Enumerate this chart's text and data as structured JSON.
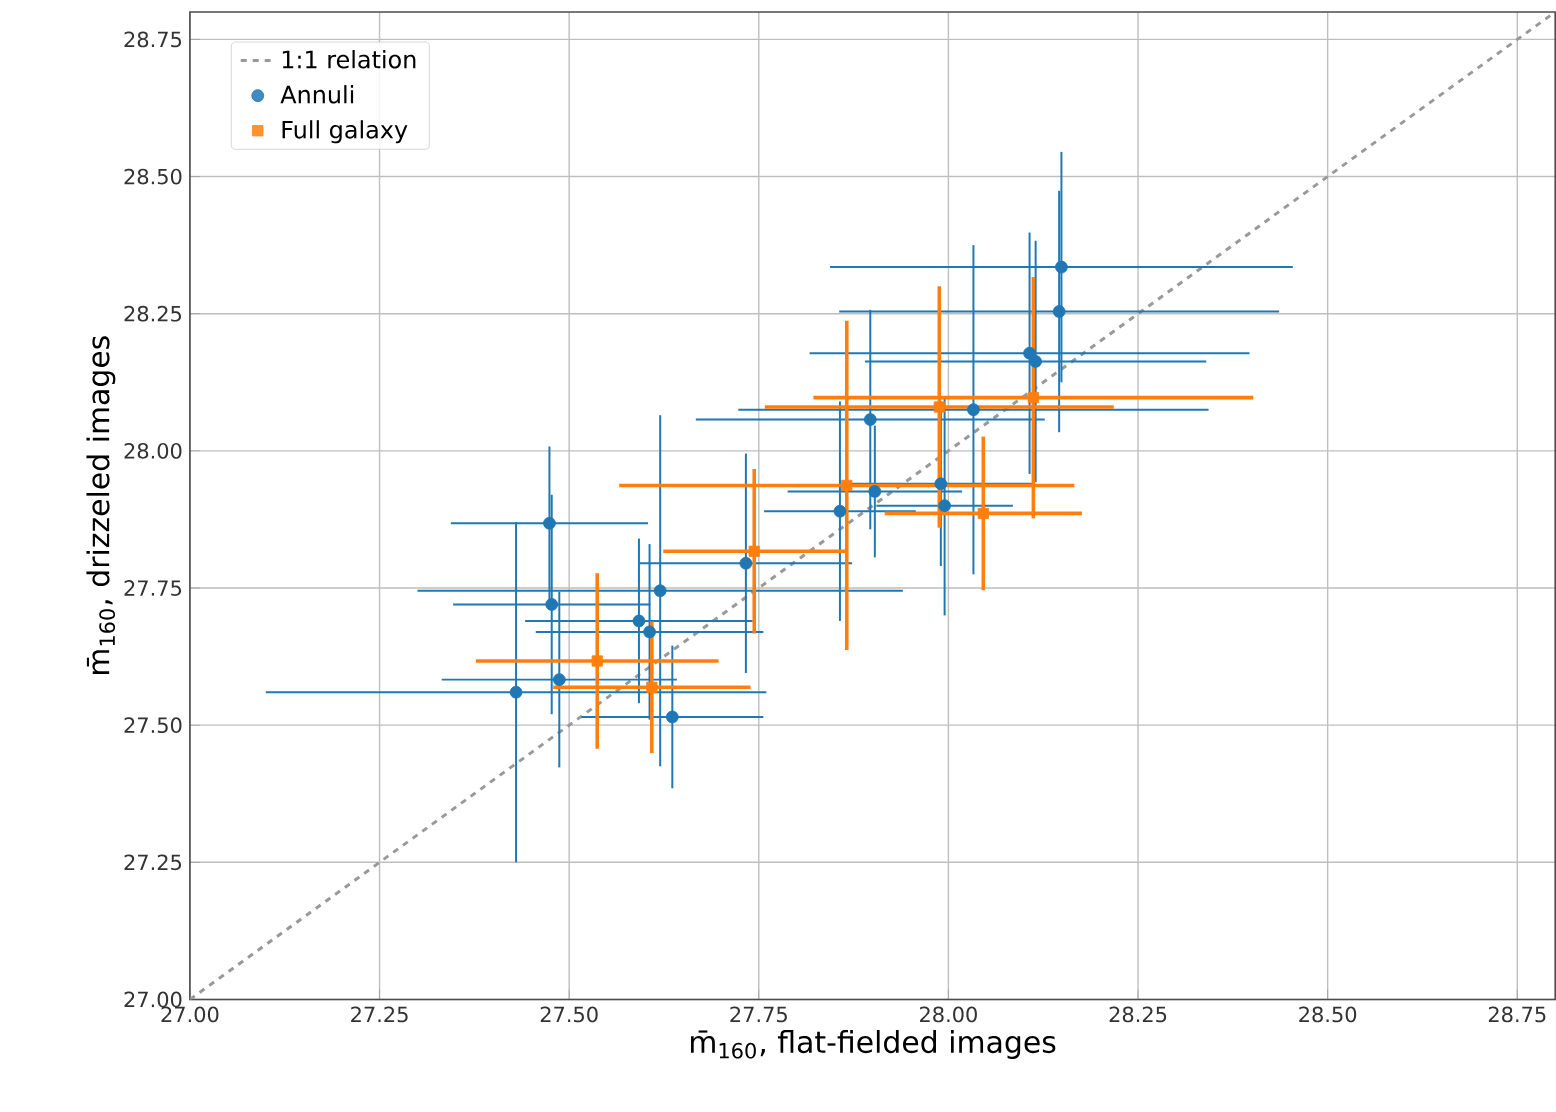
{
  "chart_data": {
    "type": "scatter",
    "xlabel": "m̄$_{160}$, flat-fielded images",
    "ylabel": "m̄$_{160}$, drizzeled images",
    "xlim": [
      27.0,
      28.8
    ],
    "ylim": [
      27.0,
      28.8
    ],
    "xticks": [
      {
        "value": 27.0,
        "label": "27.00"
      },
      {
        "value": 27.25,
        "label": "27.25"
      },
      {
        "value": 27.5,
        "label": "27.50"
      },
      {
        "value": 27.75,
        "label": "27.75"
      },
      {
        "value": 28.0,
        "label": "28.00"
      },
      {
        "value": 28.25,
        "label": "28.25"
      },
      {
        "value": 28.5,
        "label": "28.50"
      },
      {
        "value": 28.75,
        "label": "28.75"
      }
    ],
    "yticks": [
      {
        "value": 27.0,
        "label": "27.00"
      },
      {
        "value": 27.25,
        "label": "27.25"
      },
      {
        "value": 27.5,
        "label": "27.50"
      },
      {
        "value": 27.75,
        "label": "27.75"
      },
      {
        "value": 28.0,
        "label": "28.00"
      },
      {
        "value": 28.25,
        "label": "28.25"
      },
      {
        "value": 28.5,
        "label": "28.50"
      },
      {
        "value": 28.75,
        "label": "28.75"
      }
    ],
    "grid": true,
    "legend": "top left",
    "series": [
      {
        "name": "1:1 relation",
        "type": "line",
        "color": "#999999",
        "line_style": "dashed",
        "marker": "none",
        "x": [
          27.0,
          28.8
        ],
        "values": [
          27.0,
          28.8
        ]
      },
      {
        "name": "Annuli",
        "color": "#1f77b4",
        "marker": "circle",
        "x": [
          27.474,
          27.477,
          27.487,
          27.43,
          27.62,
          27.592,
          27.606,
          27.636,
          27.733,
          27.857,
          27.897,
          27.903,
          27.99,
          27.995,
          28.033,
          28.107,
          28.115,
          28.149,
          28.146
        ],
        "values": [
          27.868,
          27.72,
          27.583,
          27.56,
          27.745,
          27.69,
          27.67,
          27.515,
          27.795,
          27.89,
          28.057,
          27.926,
          27.94,
          27.9,
          28.075,
          28.178,
          28.163,
          28.335,
          28.254
        ],
        "xerrors": [
          0.13,
          0.13,
          0.155,
          0.33,
          0.32,
          0.15,
          0.15,
          0.12,
          0.14,
          0.1,
          0.23,
          0.115,
          0.12,
          0.09,
          0.31,
          0.29,
          0.225,
          0.305,
          0.29
        ],
        "errors": [
          0.14,
          0.2,
          0.16,
          0.31,
          0.32,
          0.15,
          0.16,
          0.13,
          0.2,
          0.2,
          0.2,
          0.12,
          0.15,
          0.2,
          0.3,
          0.22,
          0.22,
          0.21,
          0.22
        ]
      },
      {
        "name": "Full galaxy",
        "color": "#ff7f0e",
        "marker": "square",
        "x": [
          27.537,
          27.609,
          27.744,
          27.866,
          27.988,
          28.046,
          28.112
        ],
        "values": [
          27.617,
          27.569,
          27.817,
          27.937,
          28.08,
          27.886,
          28.097
        ],
        "xerrors": [
          0.16,
          0.13,
          0.12,
          0.3,
          0.23,
          0.13,
          0.29
        ],
        "errors": [
          0.16,
          0.12,
          0.15,
          0.3,
          0.22,
          0.14,
          0.22
        ]
      }
    ]
  }
}
